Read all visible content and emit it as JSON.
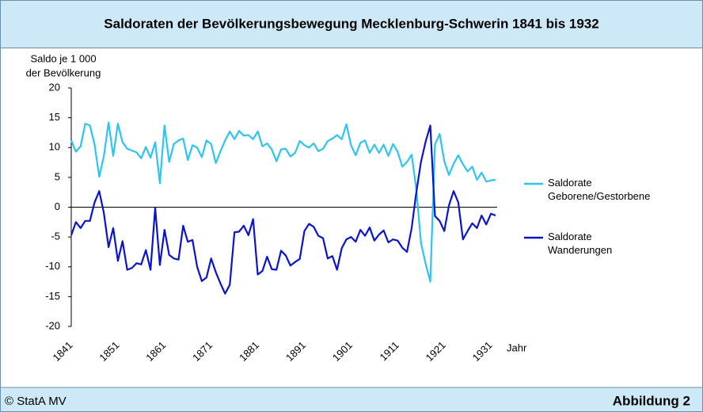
{
  "chart_data": {
    "type": "line",
    "title": "Saldoraten der Bevölkerungsbewegung Mecklenburg-Schwerin 1841 bis 1932",
    "ylabel": [
      "Saldo je 1 000",
      "der Bevölkerung"
    ],
    "xlabel": "Jahr",
    "x": [
      1841,
      1842,
      1843,
      1844,
      1845,
      1846,
      1847,
      1848,
      1849,
      1850,
      1851,
      1852,
      1853,
      1854,
      1855,
      1856,
      1857,
      1858,
      1859,
      1860,
      1861,
      1862,
      1863,
      1864,
      1865,
      1866,
      1867,
      1868,
      1869,
      1870,
      1871,
      1872,
      1873,
      1874,
      1875,
      1876,
      1877,
      1878,
      1879,
      1880,
      1881,
      1882,
      1883,
      1884,
      1885,
      1886,
      1887,
      1888,
      1889,
      1890,
      1891,
      1892,
      1893,
      1894,
      1895,
      1896,
      1897,
      1898,
      1899,
      1900,
      1901,
      1902,
      1903,
      1904,
      1905,
      1906,
      1907,
      1908,
      1909,
      1910,
      1911,
      1912,
      1913,
      1914,
      1915,
      1916,
      1917,
      1918,
      1919,
      1920,
      1921,
      1922,
      1923,
      1924,
      1925,
      1926,
      1927,
      1928,
      1929,
      1930,
      1931,
      1932
    ],
    "series": [
      {
        "name": "Saldorate Geborene/Gestorbene",
        "color": "#2ec4ef",
        "values": [
          11.2,
          9.3,
          10.2,
          14,
          13.7,
          10.5,
          5.1,
          8.6,
          14.2,
          8.6,
          14,
          10.9,
          9.8,
          9.5,
          9.2,
          8.2,
          10.1,
          8.3,
          10.9,
          4,
          13.7,
          7.6,
          10.6,
          11.2,
          11.5,
          7.9,
          10.4,
          10,
          8.4,
          11.2,
          10.6,
          7.4,
          9.4,
          11.2,
          12.7,
          11.4,
          12.8,
          12,
          12.1,
          11.4,
          12.7,
          10.2,
          10.7,
          9.7,
          7.7,
          9.7,
          9.8,
          8.5,
          9.1,
          11.1,
          10.4,
          10,
          10.7,
          9.4,
          9.8,
          11.1,
          11.5,
          12.1,
          11.4,
          13.9,
          10.4,
          8.7,
          10.8,
          11.2,
          9.1,
          10.5,
          9.1,
          10.5,
          8.6,
          10.6,
          9.3,
          6.8,
          7.6,
          8.8,
          3,
          -6,
          -9.5,
          -12.5,
          10.5,
          12.3,
          7.7,
          5.4,
          7.3,
          8.7,
          7.2,
          6,
          6.8,
          4.6,
          5.8,
          4.3,
          4.5,
          4.6
        ]
      },
      {
        "name": "Saldorate Wanderungen",
        "color": "#0a14c8",
        "values": [
          -4.7,
          -2.5,
          -3.5,
          -2.3,
          -2.3,
          0.8,
          2.7,
          -1,
          -6.7,
          -3.5,
          -9,
          -5.7,
          -10.5,
          -10.2,
          -9.4,
          -9.6,
          -7.2,
          -10.5,
          -0.1,
          -9.7,
          -3.8,
          -8,
          -8.6,
          -8.8,
          -3.1,
          -5.8,
          -5.5,
          -10,
          -12.4,
          -11.8,
          -8.6,
          -10.9,
          -12.8,
          -14.5,
          -13,
          -4.2,
          -4.1,
          -3.1,
          -4.7,
          -2,
          -11.3,
          -10.7,
          -8.3,
          -10.4,
          -10.5,
          -7.3,
          -8.1,
          -9.8,
          -9.2,
          -8.7,
          -4,
          -2.8,
          -3.3,
          -4.8,
          -5.2,
          -8.6,
          -8.2,
          -10.5,
          -6.9,
          -5.4,
          -5,
          -5.8,
          -3.8,
          -4.8,
          -3.4,
          -5.6,
          -4.6,
          -3.9,
          -5.9,
          -5.4,
          -5.6,
          -6.8,
          -7.5,
          -3.5,
          2.5,
          7.6,
          11,
          13.7,
          -1.5,
          -2.3,
          -4,
          0.3,
          2.7,
          0.8,
          -5.4,
          -4,
          -2.7,
          -3.5,
          -1.4,
          -2.9,
          -1.1,
          -1.4
        ]
      }
    ],
    "xlim": [
      1841,
      1932
    ],
    "xticks": [
      1841,
      1851,
      1861,
      1871,
      1881,
      1891,
      1901,
      1911,
      1921,
      1931
    ],
    "ylim": [
      -20,
      20
    ],
    "yticks": [
      -20,
      -15,
      -10,
      -5,
      0,
      5,
      10,
      15,
      20
    ],
    "zero_line": true,
    "grid": false,
    "legend": "right"
  },
  "footer": {
    "source": "© StatA MV",
    "figure": "Abbildung 2"
  }
}
